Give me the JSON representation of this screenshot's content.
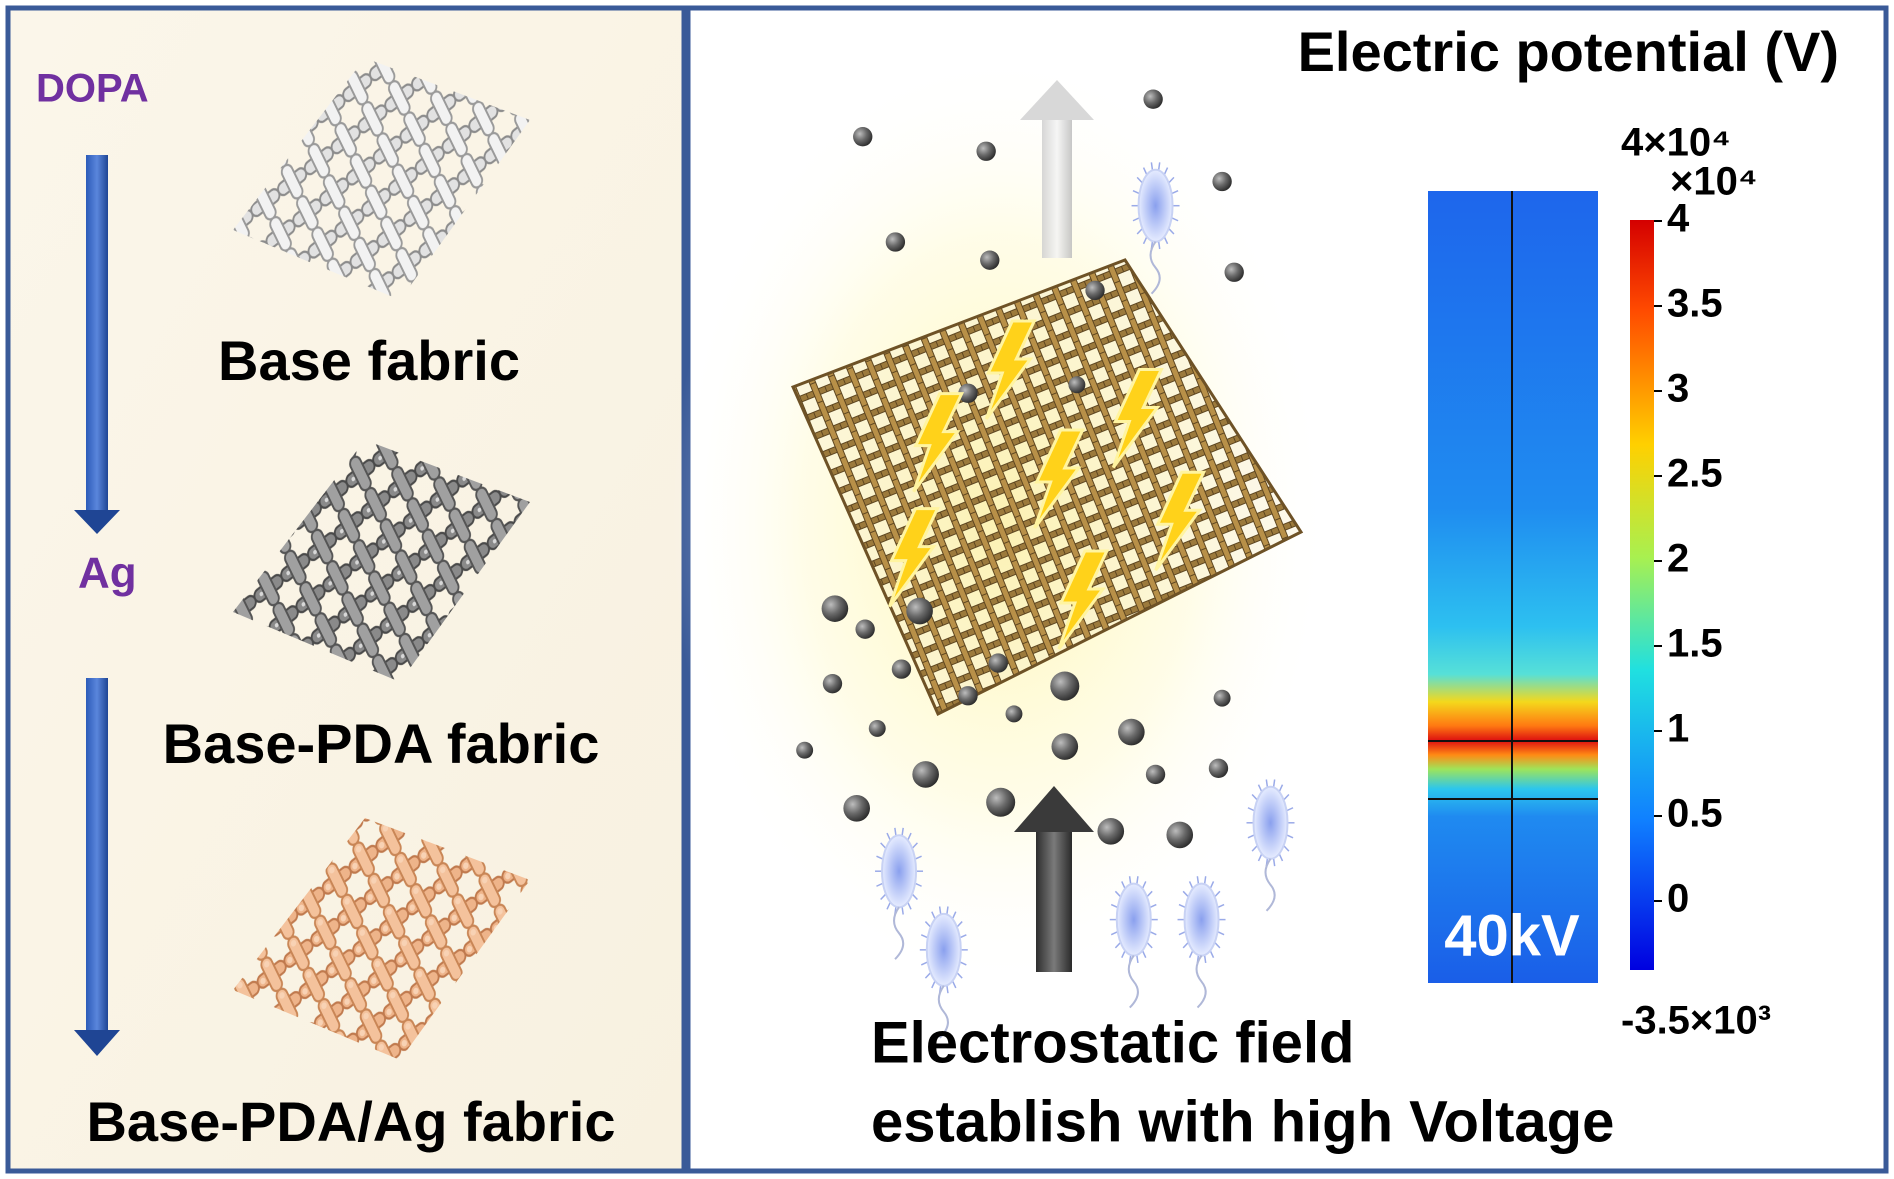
{
  "left_panel": {
    "steps": [
      "DOPA",
      "Ag"
    ],
    "labels": [
      "Base fabric",
      "Base-PDA fabric",
      "Base-PDA/Ag fabric"
    ]
  },
  "right_panel": {
    "title": "Electric potential (V)",
    "map_label": "40kV",
    "colorbar": {
      "max_label": "4×10⁴",
      "multiplier": "×10⁴",
      "ticks": [
        "4",
        "3.5",
        "3",
        "2.5",
        "2",
        "1.5",
        "1",
        "0.5",
        "0"
      ],
      "min_label": "-3.5×10³"
    },
    "caption": [
      "Electrostatic field",
      "establish with high Voltage"
    ]
  }
}
